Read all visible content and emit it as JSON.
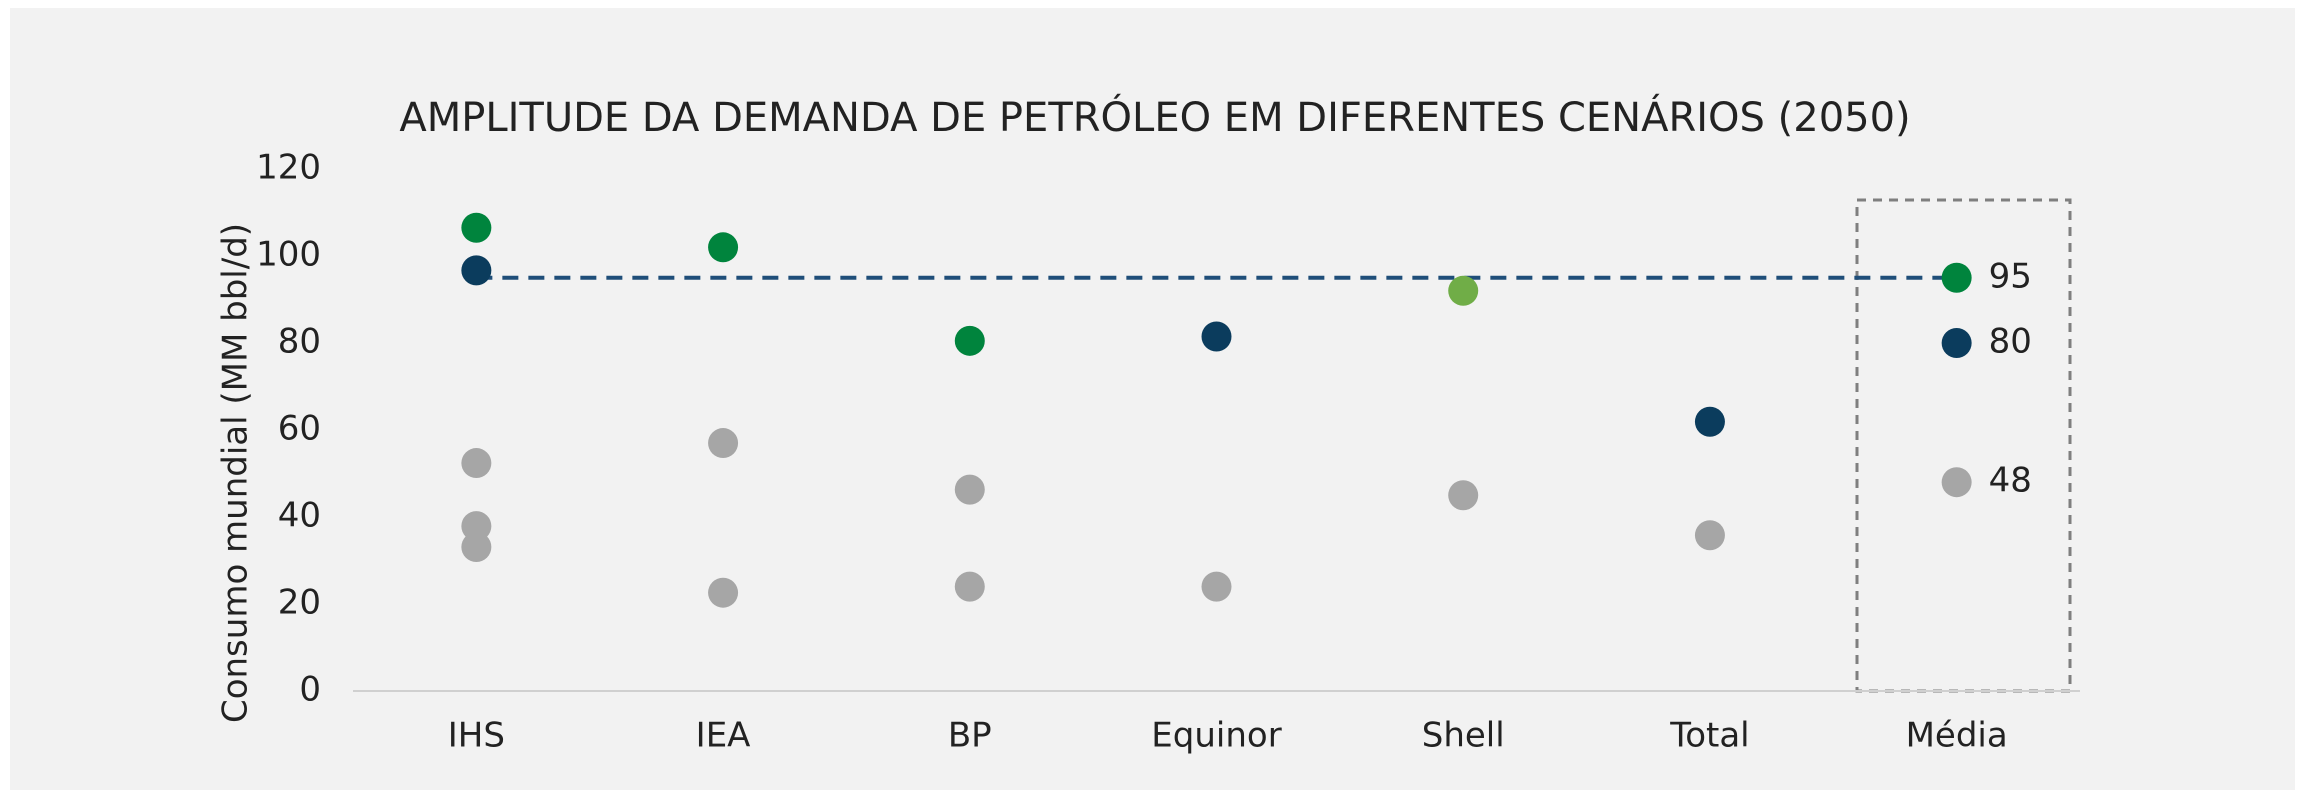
{
  "chart_data": {
    "type": "dot",
    "title": "AMPLITUDE DA DEMANDA DE PETRÓLEO EM DIFERENTES CENÁRIOS (2050)",
    "y_label": "Consumo mundial (MM bbl/d)",
    "categories": [
      "IHS",
      "IEA",
      "BP",
      "Equinor",
      "Shell",
      "Total",
      "Média"
    ],
    "series": [
      {
        "color": "#00843d",
        "values": [
          106.5,
          102,
          80.5,
          null,
          null,
          null,
          95
        ]
      },
      {
        "color": "#70ad47",
        "values": [
          null,
          null,
          null,
          null,
          92,
          null,
          null
        ]
      },
      {
        "color": "#0b3c5d",
        "values": [
          96.7,
          null,
          null,
          81.5,
          null,
          61.9,
          80
        ]
      },
      {
        "color": "#a6a6a6",
        "values": [
          52.4,
          57,
          46.3,
          24,
          45,
          35.8,
          48
        ]
      },
      {
        "color": "#a6a6a6",
        "values": [
          37.9,
          22.6,
          24,
          null,
          null,
          null,
          null
        ]
      },
      {
        "color": "#a6a6a6",
        "values": [
          33.1,
          null,
          null,
          null,
          null,
          null,
          null
        ]
      }
    ],
    "ylim": [
      0,
      120
    ],
    "yticks": [
      0,
      20,
      40,
      60,
      80,
      100,
      120
    ],
    "grid": false
  }
}
